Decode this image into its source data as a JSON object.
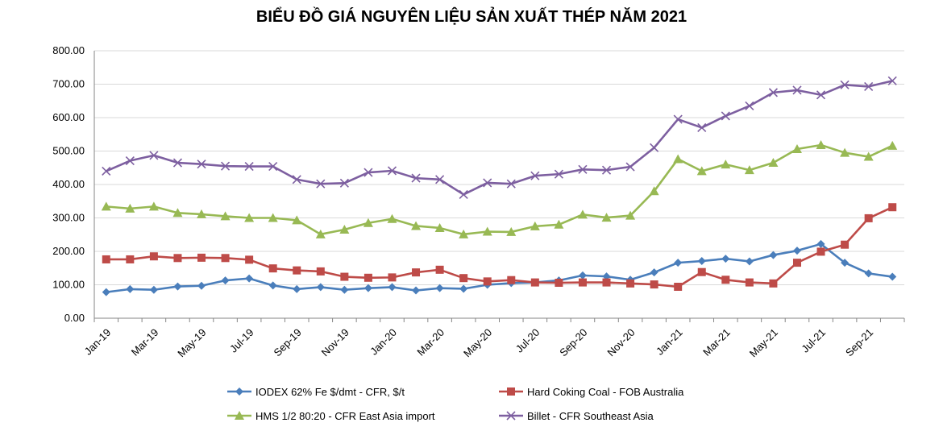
{
  "chart_data": {
    "type": "line",
    "title": "BIỂU ĐỒ GIÁ NGUYÊN LIỆU SẢN XUẤT THÉP NĂM 2021",
    "xlabel": "",
    "ylabel": "",
    "ylim": [
      0,
      800
    ],
    "yticks": [
      "0.00",
      "100.00",
      "200.00",
      "300.00",
      "400.00",
      "500.00",
      "600.00",
      "700.00",
      "800.00"
    ],
    "categories": [
      "Jan-19",
      "Feb-19",
      "Mar-19",
      "Apr-19",
      "May-19",
      "Jun-19",
      "Jul-19",
      "Aug-19",
      "Sep-19",
      "Oct-19",
      "Nov-19",
      "Dec-19",
      "Jan-20",
      "Feb-20",
      "Mar-20",
      "Apr-20",
      "May-20",
      "Jun-20",
      "Jul-20",
      "Aug-20",
      "Sep-20",
      "Oct-20",
      "Nov-20",
      "Dec-20",
      "Jan-21",
      "Feb-21",
      "Mar-21",
      "Apr-21",
      "May-21",
      "Jun-21",
      "Jul-21",
      "Aug-21",
      "Sep-21",
      "Oct-21"
    ],
    "xtick_labels": [
      "Jan-19",
      "",
      "Mar-19",
      "",
      "May-19",
      "",
      "Jul-19",
      "",
      "Sep-19",
      "",
      "Nov-19",
      "",
      "Jan-20",
      "",
      "Mar-20",
      "",
      "May-20",
      "",
      "Jul-20",
      "",
      "Sep-20",
      "",
      "Nov-20",
      "",
      "Jan-21",
      "",
      "Mar-21",
      "",
      "May-21",
      "",
      "Jul-21",
      "",
      "Sep-21",
      ""
    ],
    "grid": true,
    "legend_position": "bottom",
    "series": [
      {
        "name": "IODEX 62% Fe $/dmt - CFR, $/t",
        "color": "#4a7ebb",
        "marker": "diamond",
        "values": [
          78,
          87,
          85,
          95,
          97,
          113,
          119,
          98,
          87,
          93,
          85,
          90,
          93,
          83,
          90,
          88,
          100,
          105,
          107,
          113,
          128,
          125,
          115,
          137,
          166,
          171,
          178,
          170,
          189,
          202,
          222,
          166,
          134,
          124
        ]
      },
      {
        "name": "Hard Coking Coal - FOB Australia",
        "color": "#be4b48",
        "marker": "square",
        "values": [
          176,
          176,
          185,
          180,
          181,
          180,
          175,
          149,
          143,
          140,
          124,
          121,
          122,
          137,
          145,
          120,
          110,
          114,
          107,
          106,
          107,
          107,
          104,
          101,
          94,
          138,
          115,
          107,
          104,
          166,
          199,
          220,
          299,
          332
        ]
      },
      {
        "name": "HMS 1/2 80:20 - CFR East Asia import",
        "color": "#98b954",
        "marker": "triangle",
        "values": [
          334,
          328,
          334,
          315,
          311,
          305,
          300,
          300,
          293,
          251,
          265,
          285,
          297,
          276,
          270,
          251,
          259,
          258,
          275,
          280,
          310,
          301,
          307,
          380,
          476,
          440,
          460,
          443,
          465,
          506,
          518,
          495,
          483,
          516
        ]
      },
      {
        "name": "Billet - CFR Southeast Asia",
        "color": "#7d5fa0",
        "marker": "x",
        "values": [
          440,
          471,
          487,
          465,
          461,
          455,
          454,
          454,
          415,
          402,
          404,
          436,
          441,
          419,
          415,
          370,
          405,
          402,
          426,
          431,
          445,
          443,
          453,
          510,
          595,
          570,
          605,
          635,
          675,
          682,
          668,
          698,
          693,
          710
        ]
      }
    ]
  }
}
